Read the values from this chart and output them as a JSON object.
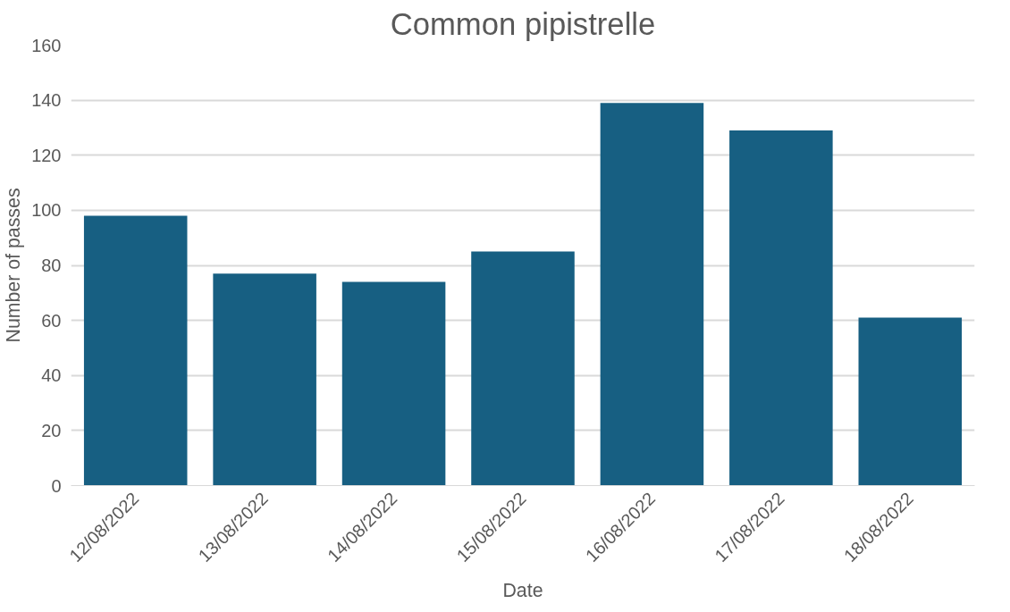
{
  "chart_data": {
    "type": "bar",
    "title": "Common pipistrelle",
    "xlabel": "Date",
    "ylabel": "Number of passes",
    "categories": [
      "12/08/2022",
      "13/08/2022",
      "14/08/2022",
      "15/08/2022",
      "16/08/2022",
      "17/08/2022",
      "18/08/2022"
    ],
    "values": [
      98,
      77,
      74,
      85,
      139,
      129,
      61
    ],
    "color": "#175f82",
    "ylim": [
      0,
      160
    ],
    "yticks": [
      0,
      20,
      40,
      60,
      80,
      100,
      120,
      140,
      160
    ],
    "grid": "y"
  }
}
